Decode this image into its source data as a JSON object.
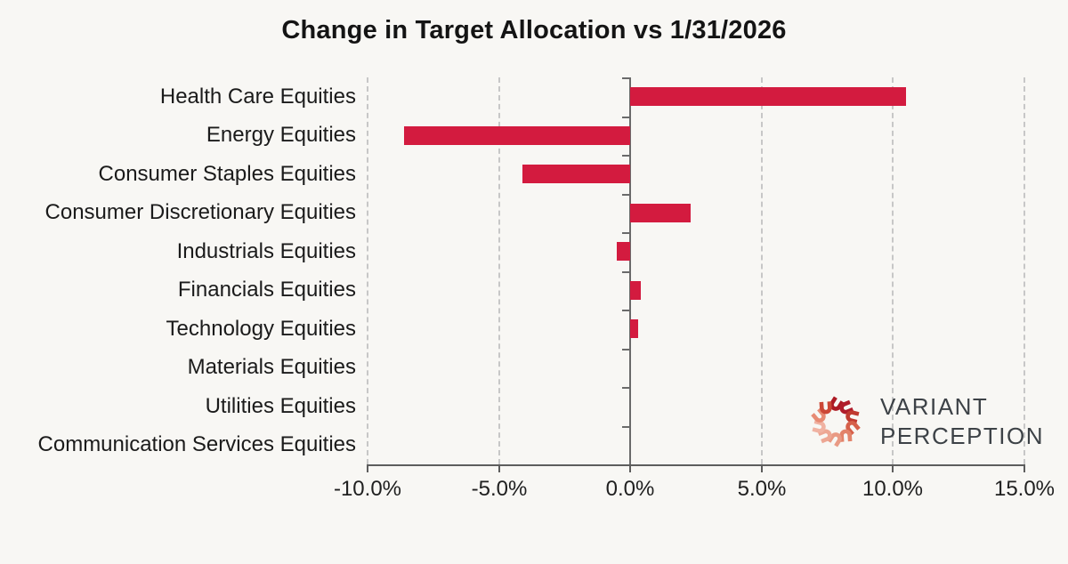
{
  "title": "Change in Target Allocation vs 1/31/2026",
  "logo": {
    "line1": "VARIANT",
    "line2": "PERCEPTION"
  },
  "colors": {
    "background": "#f8f7f4",
    "bar": "#d31b3f",
    "axis": "#6a6a6a",
    "grid": "#c7c7c7",
    "text": "#1b1b1b",
    "logo_text": "#3d4247",
    "logo_mark": [
      "#ad1a24",
      "#b01c2a",
      "#c03a30",
      "#d6604a",
      "#e2836a",
      "#e99a84",
      "#eda794",
      "#f0b2a2",
      "#e78a73",
      "#cc4736"
    ]
  },
  "chart_data": {
    "type": "bar",
    "orientation": "horizontal",
    "title": "Change in Target Allocation vs 1/31/2026",
    "categories": [
      "Health Care Equities",
      "Energy Equities",
      "Consumer Staples Equities",
      "Consumer Discretionary Equities",
      "Industrials Equities",
      "Financials Equities",
      "Technology Equities",
      "Materials Equities",
      "Utilities Equities",
      "Communication Services Equities"
    ],
    "values": [
      10.5,
      -8.6,
      -4.1,
      2.3,
      -0.5,
      0.4,
      0.3,
      0.0,
      0.0,
      0.0
    ],
    "value_unit": "%",
    "xlim": [
      -10,
      15
    ],
    "x_ticks": [
      -10,
      -5,
      0,
      5,
      10,
      15
    ],
    "x_tick_labels": [
      "-10.0%",
      "-5.0%",
      "0.0%",
      "5.0%",
      "10.0%",
      "15.0%"
    ],
    "grid": "vertical-dashed",
    "legend": "none"
  }
}
